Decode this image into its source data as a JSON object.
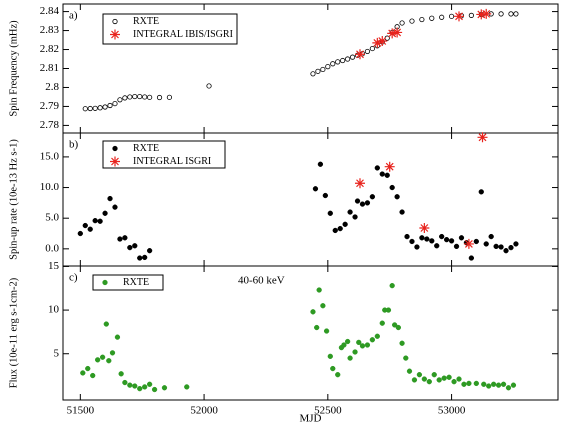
{
  "chart_data": [
    {
      "type": "scatter",
      "panel_label": "a)",
      "ylabel": "Spin Frequency (mHz)",
      "xlim": [
        51430,
        53430
      ],
      "ylim": [
        2.776,
        2.844
      ],
      "yticks": [
        2.78,
        2.79,
        2.8,
        2.81,
        2.82,
        2.83,
        2.84
      ],
      "series": [
        {
          "name": "RXTE",
          "color": "#000000",
          "marker": "open-circle",
          "x": [
            51520,
            51540,
            51560,
            51580,
            51600,
            51620,
            51640,
            51660,
            51680,
            51700,
            51720,
            51740,
            51760,
            51780,
            51820,
            51860,
            52020,
            52440,
            52460,
            52480,
            52500,
            52520,
            52540,
            52560,
            52580,
            52600,
            52620,
            52640,
            52660,
            52680,
            52700,
            52720,
            52740,
            52760,
            52780,
            52800,
            52840,
            52880,
            52920,
            52960,
            53000,
            53040,
            53080,
            53120,
            53160,
            53200,
            53240,
            53260
          ],
          "values": [
            2.7888,
            2.7889,
            2.789,
            2.7893,
            2.7897,
            2.7905,
            2.7915,
            2.7935,
            2.7945,
            2.795,
            2.7952,
            2.7952,
            2.795,
            2.7948,
            2.7947,
            2.7948,
            2.8008,
            2.8072,
            2.8085,
            2.8095,
            2.811,
            2.8125,
            2.8135,
            2.8142,
            2.815,
            2.816,
            2.817,
            2.8178,
            2.819,
            2.8205,
            2.822,
            2.824,
            2.826,
            2.829,
            2.832,
            2.834,
            2.835,
            2.8358,
            2.8365,
            2.837,
            2.8375,
            2.8378,
            2.838,
            2.8385,
            2.8388,
            2.8388,
            2.8388,
            2.8388
          ]
        },
        {
          "name": "INTEGRAL IBIS/ISGRI",
          "color": "#e8231d",
          "marker": "asterisk",
          "x": [
            52630,
            52700,
            52720,
            52760,
            52780,
            53030,
            53120,
            53140
          ],
          "values": [
            2.8175,
            2.8235,
            2.8245,
            2.8285,
            2.829,
            2.8375,
            2.8385,
            2.8388
          ]
        }
      ]
    },
    {
      "type": "scatter",
      "panel_label": "b)",
      "ylabel": "Spin-up rate (10e-13 Hz s-1)",
      "xlim": [
        51430,
        53430
      ],
      "ylim": [
        -2.8,
        18.9
      ],
      "yticks": [
        {
          "value": 0,
          "label": "0.0"
        },
        {
          "value": 5,
          "label": "5.0"
        },
        {
          "value": 10,
          "label": "10.0"
        },
        {
          "value": 15,
          "label": "15.0"
        }
      ],
      "series": [
        {
          "name": "RXTE",
          "color": "#000000",
          "marker": "filled-circle",
          "x": [
            51500,
            51520,
            51540,
            51560,
            51580,
            51600,
            51620,
            51640,
            51660,
            51680,
            51700,
            51720,
            51740,
            51760,
            51780,
            52450,
            52470,
            52490,
            52510,
            52530,
            52550,
            52570,
            52590,
            52610,
            52620,
            52640,
            52660,
            52680,
            52700,
            52720,
            52740,
            52760,
            52780,
            52800,
            52820,
            52840,
            52860,
            52880,
            52900,
            52920,
            52940,
            52960,
            52980,
            53000,
            53020,
            53040,
            53060,
            53080,
            53100,
            53120,
            53140,
            53160,
            53180,
            53200,
            53220,
            53240,
            53260
          ],
          "values": [
            2.5,
            3.8,
            3.2,
            4.6,
            4.5,
            5.8,
            8.2,
            6.8,
            1.6,
            1.8,
            0.2,
            0.5,
            -1.5,
            -1.4,
            -0.3,
            9.8,
            13.8,
            8.7,
            5.8,
            3.0,
            3.3,
            4.0,
            6.0,
            5.2,
            7.8,
            7.3,
            7.5,
            8.5,
            13.2,
            12.2,
            12.0,
            10.0,
            8.5,
            6.0,
            2.0,
            1.2,
            0.3,
            1.8,
            1.6,
            1.3,
            0.5,
            2.0,
            1.5,
            1.3,
            0.4,
            1.8,
            1.0,
            -1.5,
            1.2,
            9.3,
            0.8,
            2.0,
            0.4,
            0.3,
            -0.3,
            0.2,
            0.8
          ]
        },
        {
          "name": "INTEGRAL ISGRI",
          "color": "#e8231d",
          "marker": "asterisk",
          "x": [
            52630,
            52750,
            52890,
            53070,
            53125
          ],
          "values": [
            10.7,
            13.4,
            3.4,
            0.8,
            18.2
          ]
        }
      ]
    },
    {
      "type": "scatter",
      "panel_label": "c)",
      "ylabel": "Flux (10e-11 erg s-1cm-2)",
      "xlabel": "MJD",
      "annotation": "40-60 keV",
      "xlim": [
        51430,
        53430
      ],
      "xticks": [
        51500,
        52000,
        52500,
        53000
      ],
      "ylim": [
        -0.3,
        15.05
      ],
      "yticks": [
        5,
        10,
        15
      ],
      "series": [
        {
          "name": "RXTE",
          "color": "#2e9a23",
          "marker": "filled-circle",
          "x": [
            51510,
            51530,
            51550,
            51570,
            51590,
            51605,
            51615,
            51630,
            51650,
            51665,
            51680,
            51700,
            51720,
            51740,
            51760,
            51780,
            51800,
            51840,
            51930,
            52440,
            52455,
            52465,
            52480,
            52495,
            52510,
            52520,
            52540,
            52555,
            52565,
            52580,
            52590,
            52610,
            52625,
            52640,
            52660,
            52680,
            52700,
            52720,
            52730,
            52745,
            52760,
            52770,
            52785,
            52800,
            52815,
            52830,
            52850,
            52870,
            52890,
            52910,
            52930,
            52950,
            52970,
            52990,
            53010,
            53030,
            53050,
            53070,
            53100,
            53130,
            53150,
            53170,
            53190,
            53210,
            53230,
            53250
          ],
          "values": [
            2.8,
            3.3,
            2.5,
            4.3,
            4.6,
            8.4,
            4.2,
            5.1,
            6.9,
            2.7,
            1.7,
            1.4,
            1.3,
            1.0,
            1.2,
            1.5,
            0.9,
            1.1,
            1.2,
            9.8,
            8.0,
            12.3,
            10.5,
            7.6,
            4.7,
            3.3,
            2.6,
            5.7,
            6.0,
            6.4,
            4.5,
            5.2,
            6.3,
            5.9,
            6.0,
            6.6,
            7.0,
            8.5,
            10.0,
            10.0,
            12.8,
            8.3,
            8.0,
            6.2,
            4.5,
            3.0,
            2.0,
            2.6,
            2.1,
            1.8,
            2.6,
            2.0,
            2.2,
            2.3,
            1.8,
            2.1,
            1.5,
            1.6,
            1.6,
            1.5,
            1.3,
            1.5,
            1.4,
            1.5,
            1.1,
            1.4
          ]
        }
      ]
    }
  ]
}
